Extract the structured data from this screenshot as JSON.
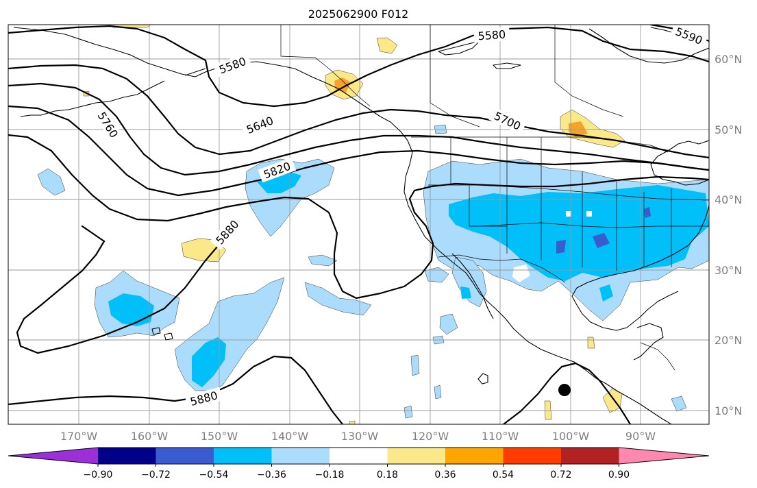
{
  "title": "2025062900 F012",
  "map": {
    "lon_labels": [
      "170°W",
      "160°W",
      "150°W",
      "140°W",
      "130°W",
      "120°W",
      "110°W",
      "100°W",
      "90°W"
    ],
    "lat_labels": [
      "60°N",
      "50°N",
      "40°N",
      "30°N",
      "20°N",
      "10°N"
    ],
    "contour_labels": [
      "5580",
      "5580",
      "5590",
      "5640",
      "5700",
      "5760",
      "5820",
      "5880",
      "5880"
    ],
    "grid": true,
    "field_description_colors": {
      "negative": [
        "#9b30d9",
        "#00008b",
        "#3b5bd0",
        "#00bff9",
        "#abdcfb"
      ],
      "neutral": "#ffffff",
      "positive": [
        "#fbe989",
        "#ffa500",
        "#ff3b00",
        "#b22222",
        "#ff88b0"
      ]
    }
  },
  "colorbar": {
    "tick_labels": [
      "−0.90",
      "−0.72",
      "−0.54",
      "−0.36",
      "−0.18",
      "0.18",
      "0.36",
      "0.54",
      "0.72",
      "0.90"
    ],
    "colors": [
      "#9b30d9",
      "#00008b",
      "#3b5bd0",
      "#00bff9",
      "#abdcfb",
      "#ffffff",
      "#fbe989",
      "#ffa500",
      "#ff3b00",
      "#b22222",
      "#ff88b0"
    ]
  }
}
